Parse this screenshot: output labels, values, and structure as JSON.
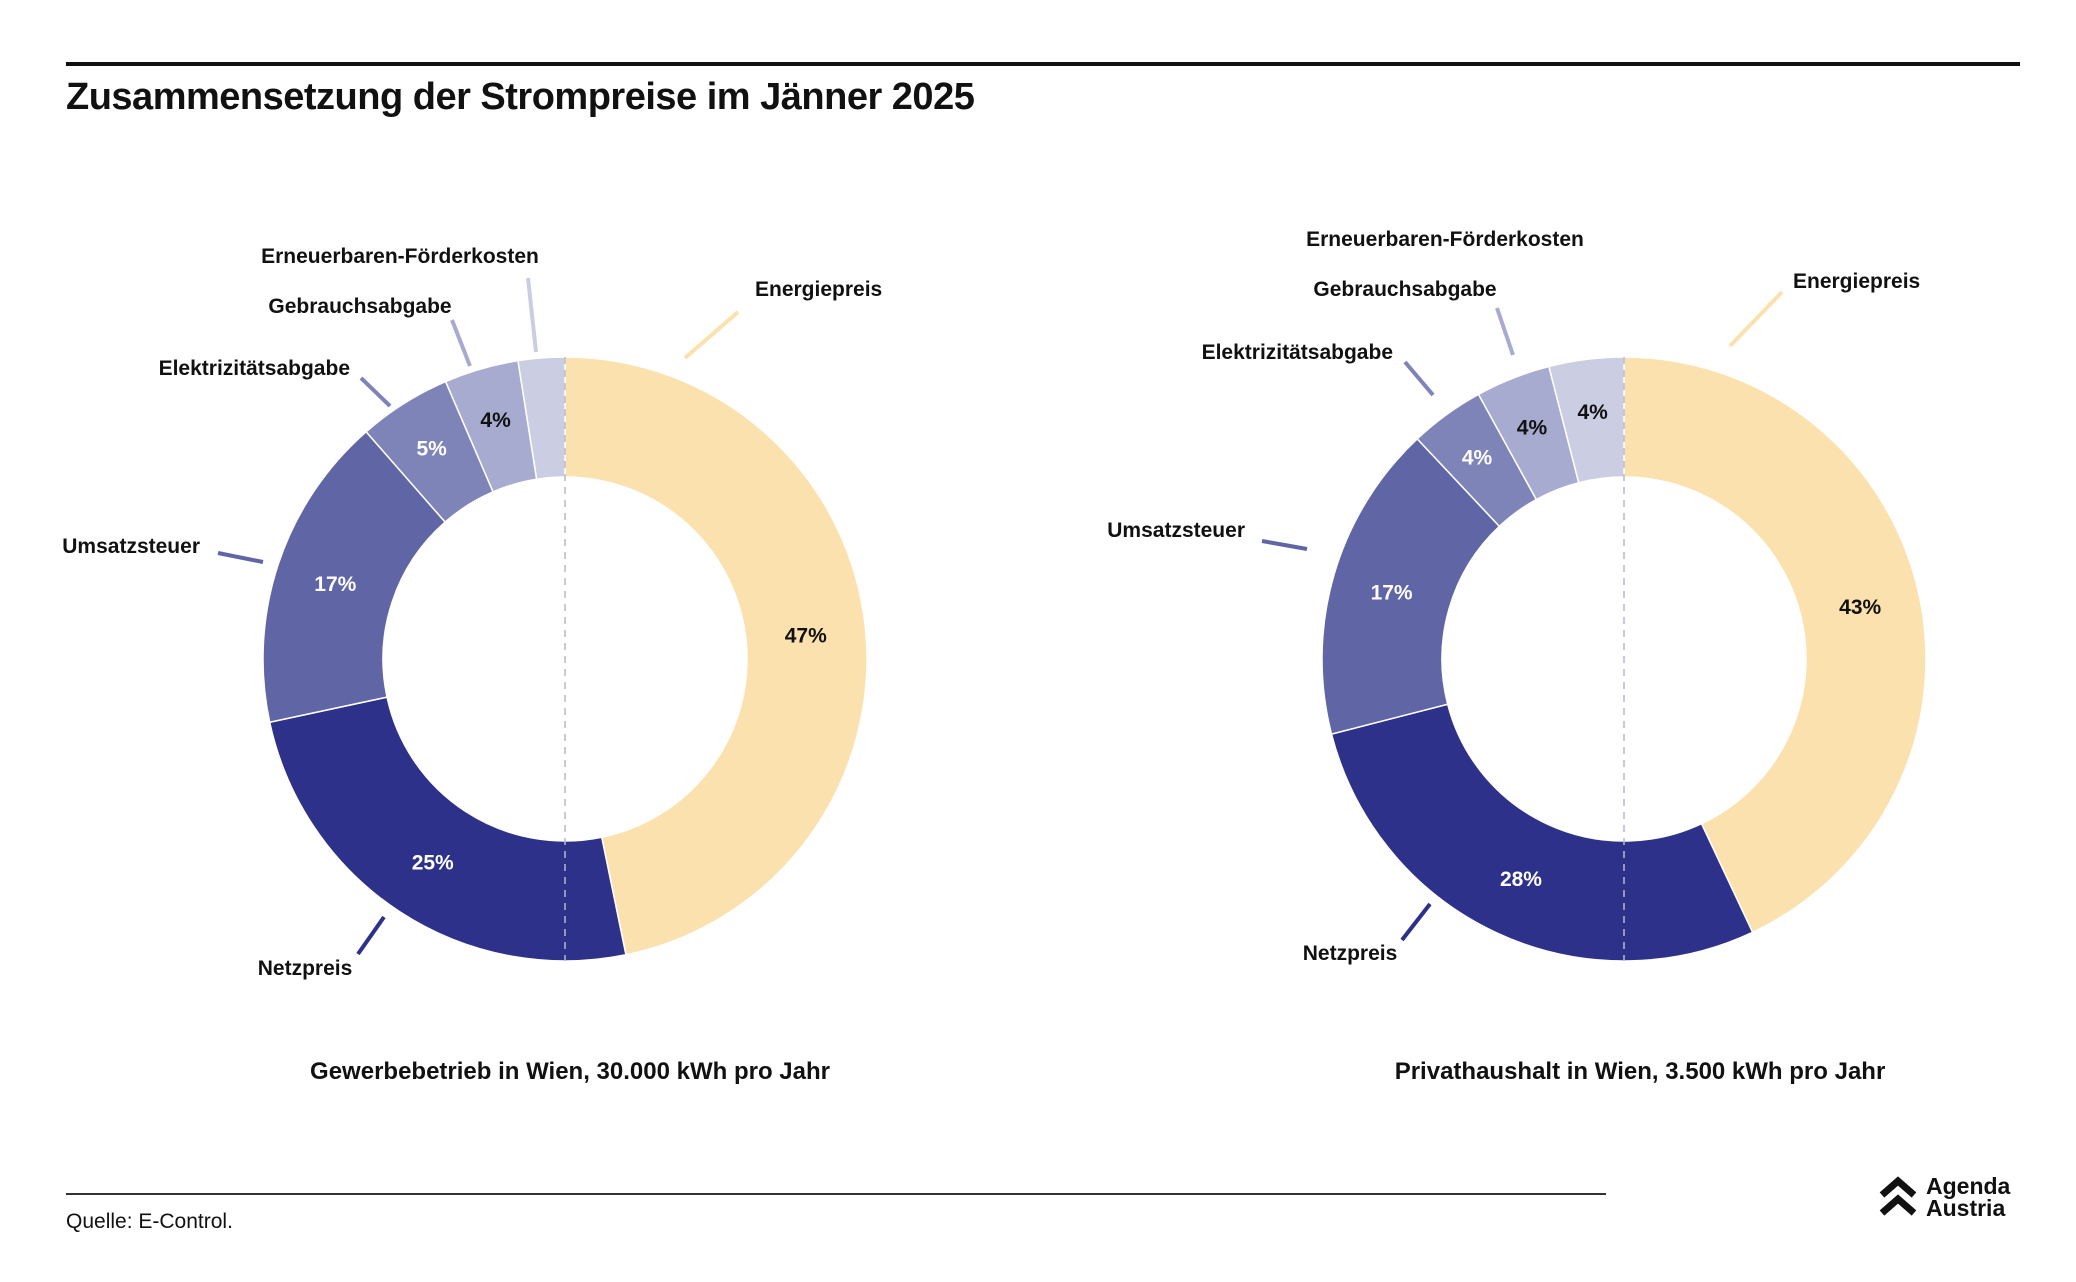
{
  "title": "Zusammensetzung der Strompreise im Jänner 2025",
  "source": "Quelle: E-Control.",
  "logo": {
    "line1": "Agenda",
    "line2": "Austria"
  },
  "colors": {
    "Energiepreis": "#fbe1ad",
    "Netzpreis": "#2d3189",
    "Umsatzsteuer": "#6065a6",
    "Elektrizitätsabgabe": "#7f84b8",
    "Gebrauchsabgabe": "#a8abd0",
    "Erneuerbaren-Förderkosten": "#cbcde3"
  },
  "chart_data": [
    {
      "type": "pie",
      "title": "Gewerbebetrieb in Wien, 30.000 kWh pro Jahr",
      "categories": [
        "Energiepreis",
        "Netzpreis",
        "Umsatzsteuer",
        "Elektrizitätsabgabe",
        "Gebrauchsabgabe",
        "Erneuerbaren-Förderkosten"
      ],
      "values": [
        47,
        25,
        17,
        5,
        4,
        2.5
      ],
      "data_labels": [
        "47%",
        "25%",
        "17%",
        "5%",
        "4%",
        ""
      ],
      "unit": "%"
    },
    {
      "type": "pie",
      "title": "Privathaushalt in Wien, 3.500 kWh pro Jahr",
      "categories": [
        "Energiepreis",
        "Netzpreis",
        "Umsatzsteuer",
        "Elektrizitätsabgabe",
        "Gebrauchsabgabe",
        "Erneuerbaren-Förderkosten"
      ],
      "values": [
        43,
        28,
        17,
        4,
        4,
        4
      ],
      "data_labels": [
        "43%",
        "28%",
        "17%",
        "4%",
        "4%",
        "4%"
      ],
      "unit": "%"
    }
  ]
}
